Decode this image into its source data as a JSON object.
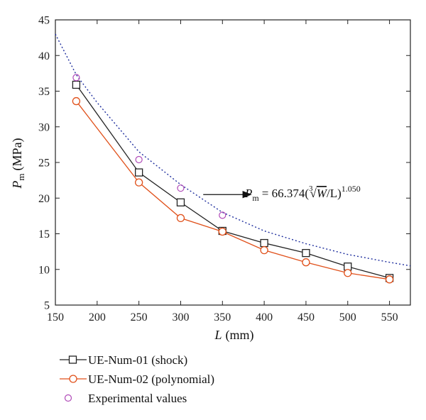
{
  "chart_data": {
    "type": "line",
    "xlabel": {
      "var": "L",
      "unit": "(mm)"
    },
    "ylabel": {
      "var": "P",
      "sub": "m",
      "unit": "(MPa)"
    },
    "xlim": [
      150,
      575
    ],
    "ylim": [
      5,
      45
    ],
    "xticks": [
      150,
      200,
      250,
      300,
      350,
      400,
      450,
      500,
      550
    ],
    "yticks": [
      5,
      10,
      15,
      20,
      25,
      30,
      35,
      40,
      45
    ],
    "grid": false,
    "legend_position": "bottom",
    "x": [
      175,
      250,
      300,
      350,
      400,
      450,
      500,
      550
    ],
    "series": [
      {
        "name": "UE-Num-01 (shock)",
        "color": "#222222",
        "marker": "square",
        "line": "solid",
        "values": [
          35.9,
          23.6,
          19.4,
          15.4,
          13.7,
          12.3,
          10.4,
          8.8
        ]
      },
      {
        "name": "UE-Num-02 (polynomial)",
        "color": "#e0501a",
        "marker": "circle",
        "line": "solid",
        "values": [
          33.6,
          22.2,
          17.2,
          15.3,
          12.7,
          11.0,
          9.5,
          8.6
        ]
      },
      {
        "name": "Experimental values",
        "color": "#b04ab8",
        "marker": "circle",
        "line": "none",
        "x": [
          175,
          250,
          300,
          350
        ],
        "values": [
          36.9,
          25.4,
          21.4,
          17.6
        ]
      }
    ],
    "fit_curve": {
      "color": "#1f2f9e",
      "style": "dotted",
      "x": [
        150,
        175,
        200,
        250,
        300,
        350,
        400,
        450,
        500,
        550,
        575
      ],
      "values": [
        43.0,
        37.3,
        33.4,
        26.5,
        21.9,
        18.0,
        15.4,
        13.6,
        12.1,
        11.0,
        10.5
      ]
    },
    "annotation": {
      "lhs_var": "P",
      "lhs_sub": "m",
      "coef": "= 66.374(",
      "root_index": "3",
      "radicand": "W",
      "tail": "/L)",
      "exponent": "1.050",
      "arrow_from": [
        327,
        20.5
      ],
      "arrow_to": [
        384,
        20.5
      ]
    }
  }
}
